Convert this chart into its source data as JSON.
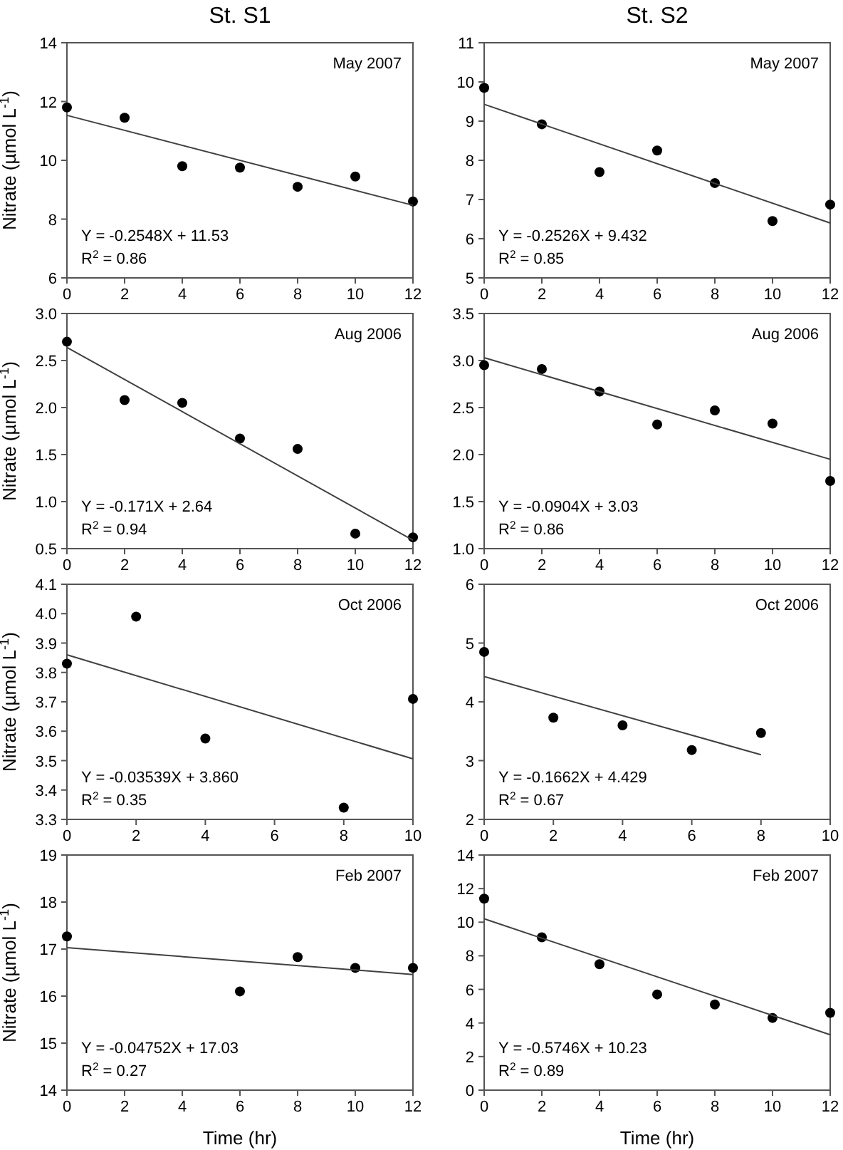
{
  "chart_data": [
    {
      "type": "scatter",
      "title": "St. S1",
      "ylabel": "Nitrate (µmol L$^{-1}$)",
      "xlim": [
        0,
        12
      ],
      "xticks": [
        0,
        2,
        4,
        6,
        8,
        10,
        12
      ],
      "ylim": [
        6,
        14
      ],
      "yticks": [
        6,
        8,
        10,
        12,
        14
      ],
      "line_style": "solid",
      "annotations": [
        "May 2007",
        "Y = -0.2548X + 11.53",
        "R$^{2}$ = 0.86"
      ],
      "series": [
        {
          "marker": "circle",
          "color": "#000000",
          "x": [
            0,
            2,
            4,
            6,
            8,
            10,
            12
          ],
          "values": [
            11.8,
            11.45,
            9.8,
            9.75,
            9.1,
            9.45,
            8.6
          ]
        },
        {
          "type": "line",
          "marker": "none",
          "color": "#404040",
          "x": [
            0,
            12
          ],
          "values": [
            11.53,
            8.47
          ]
        }
      ]
    },
    {
      "type": "scatter",
      "title": "St. S2",
      "xlim": [
        0,
        12
      ],
      "xticks": [
        0,
        2,
        4,
        6,
        8,
        10,
        12
      ],
      "ylim": [
        5,
        11
      ],
      "yticks": [
        5,
        6,
        7,
        8,
        9,
        10,
        11
      ],
      "line_style": "solid",
      "annotations": [
        "May 2007",
        "Y = -0.2526X + 9.432",
        "R$^{2}$ = 0.85"
      ],
      "series": [
        {
          "marker": "circle",
          "color": "#000000",
          "x": [
            0,
            2,
            4,
            6,
            8,
            10,
            12
          ],
          "values": [
            9.85,
            8.92,
            7.7,
            8.25,
            7.42,
            6.45,
            6.87
          ]
        },
        {
          "type": "line",
          "marker": "none",
          "color": "#404040",
          "x": [
            0,
            12
          ],
          "values": [
            9.43,
            6.4
          ]
        }
      ]
    },
    {
      "type": "scatter",
      "ylabel": "Nitrate (µmol L$^{-1}$)",
      "xlim": [
        0,
        12
      ],
      "xticks": [
        0,
        2,
        4,
        6,
        8,
        10,
        12
      ],
      "ylim": [
        0.5,
        3
      ],
      "yticks": [
        0.5,
        {
          "value": 1,
          "label": "1.0"
        },
        1.5,
        {
          "value": 2,
          "label": "2.0"
        },
        2.5,
        {
          "value": 3,
          "label": "3.0"
        }
      ],
      "line_style": "solid",
      "annotations": [
        "Aug 2006",
        "Y = -0.171X + 2.64",
        "R$^{2}$ = 0.94"
      ],
      "series": [
        {
          "marker": "circle",
          "color": "#000000",
          "x": [
            0,
            2,
            4,
            6,
            8,
            10,
            12
          ],
          "values": [
            2.7,
            2.08,
            2.05,
            1.67,
            1.56,
            0.66,
            0.62
          ]
        },
        {
          "type": "line",
          "marker": "none",
          "color": "#404040",
          "x": [
            0,
            12
          ],
          "values": [
            2.64,
            0.59
          ]
        }
      ]
    },
    {
      "type": "scatter",
      "xlim": [
        0,
        12
      ],
      "xticks": [
        0,
        2,
        4,
        6,
        8,
        10,
        12
      ],
      "ylim": [
        1,
        3.5
      ],
      "yticks": [
        {
          "value": 1,
          "label": "1.0"
        },
        1.5,
        {
          "value": 2,
          "label": "2.0"
        },
        2.5,
        {
          "value": 3,
          "label": "3.0"
        },
        3.5
      ],
      "line_style": "solid",
      "annotations": [
        "Aug 2006",
        "Y = -0.0904X + 3.03",
        "R$^{2}$ = 0.86"
      ],
      "series": [
        {
          "marker": "circle",
          "color": "#000000",
          "x": [
            0,
            2,
            4,
            6,
            8,
            10,
            12
          ],
          "values": [
            2.95,
            2.91,
            2.67,
            2.32,
            2.47,
            2.33,
            1.72
          ]
        },
        {
          "type": "line",
          "marker": "none",
          "color": "#404040",
          "x": [
            0,
            12
          ],
          "values": [
            3.03,
            1.95
          ]
        }
      ]
    },
    {
      "type": "scatter",
      "ylabel": "Nitrate (µmol L$^{-1}$)",
      "xlim": [
        0,
        10
      ],
      "xticks": [
        0,
        2,
        4,
        6,
        8,
        10
      ],
      "ylim": [
        3.3,
        4.1
      ],
      "yticks": [
        3.3,
        3.4,
        3.5,
        3.6,
        3.7,
        3.8,
        3.9,
        {
          "value": 4,
          "label": "4.0"
        },
        4.1
      ],
      "line_style": "solid",
      "annotations": [
        "Oct 2006",
        "Y = -0.03539X + 3.860",
        "R$^{2}$ = 0.35"
      ],
      "series": [
        {
          "marker": "circle",
          "color": "#000000",
          "x": [
            0,
            2,
            4,
            8,
            10
          ],
          "values": [
            3.83,
            3.99,
            3.575,
            3.34,
            3.71
          ]
        },
        {
          "type": "line",
          "marker": "none",
          "color": "#404040",
          "x": [
            0,
            10
          ],
          "values": [
            3.86,
            3.506
          ]
        }
      ]
    },
    {
      "type": "scatter",
      "xlim": [
        0,
        10
      ],
      "xticks": [
        0,
        2,
        4,
        6,
        8,
        10
      ],
      "ylim": [
        2,
        6
      ],
      "yticks": [
        2,
        3,
        4,
        5,
        6
      ],
      "line_style": "solid",
      "annotations": [
        "Oct 2006",
        "Y = -0.1662X + 4.429",
        "R$^{2}$ = 0.67"
      ],
      "series": [
        {
          "marker": "circle",
          "color": "#000000",
          "x": [
            0,
            2,
            4,
            6,
            8
          ],
          "values": [
            4.85,
            3.73,
            3.6,
            3.18,
            3.47
          ]
        },
        {
          "type": "line",
          "marker": "none",
          "color": "#404040",
          "x": [
            0,
            8
          ],
          "values": [
            4.43,
            3.1
          ]
        }
      ]
    },
    {
      "type": "scatter",
      "ylabel": "Nitrate (µmol L$^{-1}$)",
      "xlabel": "Time (hr)",
      "xlim": [
        0,
        12
      ],
      "xticks": [
        0,
        2,
        4,
        6,
        8,
        10,
        12
      ],
      "ylim": [
        14,
        19
      ],
      "yticks": [
        14,
        15,
        16,
        17,
        18,
        19
      ],
      "line_style": "solid",
      "annotations": [
        "Feb 2007",
        "Y = -0.04752X + 17.03",
        "R$^{2}$ = 0.27"
      ],
      "series": [
        {
          "marker": "circle",
          "color": "#000000",
          "x": [
            0,
            6,
            8,
            10,
            12
          ],
          "values": [
            17.27,
            16.1,
            16.83,
            16.6,
            16.6
          ]
        },
        {
          "type": "line",
          "marker": "none",
          "color": "#404040",
          "x": [
            0,
            12
          ],
          "values": [
            17.03,
            16.46
          ]
        }
      ]
    },
    {
      "type": "scatter",
      "xlabel": "Time (hr)",
      "xlim": [
        0,
        12
      ],
      "xticks": [
        0,
        2,
        4,
        6,
        8,
        10,
        12
      ],
      "ylim": [
        0,
        14
      ],
      "yticks": [
        0,
        2,
        4,
        6,
        8,
        10,
        12,
        14
      ],
      "line_style": "solid",
      "annotations": [
        "Feb 2007",
        "Y = -0.5746X + 10.23",
        "R$^{2}$ = 0.89"
      ],
      "series": [
        {
          "marker": "circle",
          "color": "#000000",
          "x": [
            0,
            2,
            4,
            6,
            8,
            10,
            12
          ],
          "values": [
            11.4,
            9.1,
            7.5,
            5.7,
            5.1,
            4.3,
            4.6
          ]
        },
        {
          "type": "line",
          "marker": "none",
          "color": "#404040",
          "x": [
            0,
            12
          ],
          "values": [
            10.2,
            3.3
          ]
        }
      ]
    }
  ]
}
